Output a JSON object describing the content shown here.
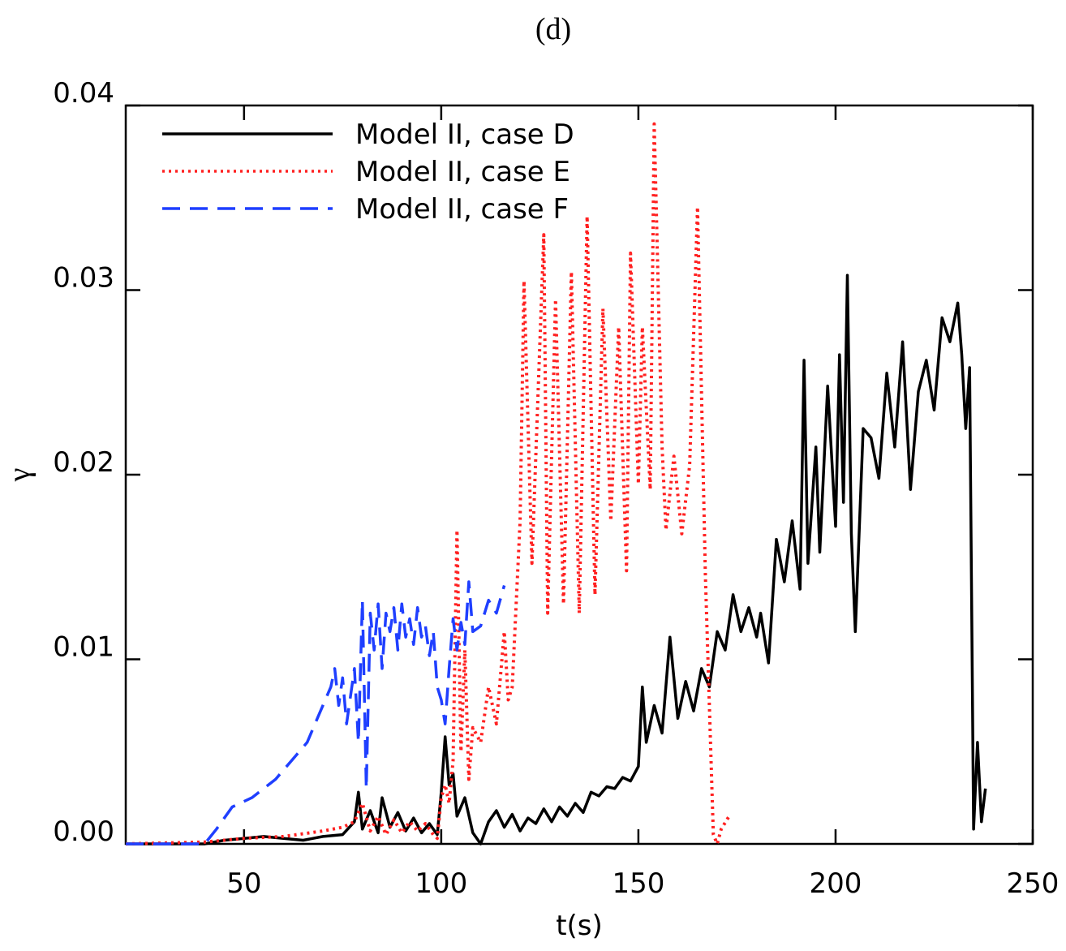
{
  "chart_data": {
    "type": "line",
    "title": "(d)",
    "x_label": "t(s)",
    "y_label": "γ",
    "xlim": [
      20,
      250
    ],
    "ylim": [
      0,
      0.04
    ],
    "xticks": [
      50,
      100,
      150,
      200,
      250
    ],
    "yticks": [
      {
        "value": 0,
        "label": "0.00"
      },
      0.01,
      0.02,
      0.03,
      0.04
    ],
    "legend": "upper left",
    "series": [
      {
        "name": "Model II, case D",
        "color": "#000000",
        "style": "solid",
        "x": [
          20,
          40,
          45,
          50,
          55,
          60,
          65,
          70,
          75,
          78,
          79,
          80,
          82,
          84,
          85,
          87,
          89,
          91,
          93,
          95,
          97,
          99,
          100,
          101,
          102,
          103,
          104,
          106,
          108,
          110,
          112,
          114,
          116,
          118,
          120,
          122,
          124,
          126,
          128,
          130,
          132,
          134,
          136,
          138,
          140,
          142,
          144,
          146,
          148,
          150,
          151,
          152,
          154,
          156,
          158,
          160,
          162,
          164,
          166,
          168,
          170,
          172,
          174,
          176,
          178,
          180,
          181,
          183,
          185,
          187,
          189,
          191,
          192,
          193,
          195,
          196,
          198,
          200,
          201,
          202,
          203,
          204,
          205,
          207,
          209,
          211,
          213,
          215,
          217,
          219,
          221,
          223,
          225,
          227,
          229,
          231,
          232,
          233,
          234,
          235,
          236,
          237,
          238
        ],
        "values": [
          0,
          0,
          0.0002,
          0.0003,
          0.0004,
          0.0003,
          0.0002,
          0.0004,
          0.0005,
          0.0012,
          0.0028,
          0.0008,
          0.0018,
          0.0006,
          0.0025,
          0.0009,
          0.0017,
          0.0007,
          0.0014,
          0.0006,
          0.0011,
          0.0005,
          0.0028,
          0.0058,
          0.0032,
          0.0038,
          0.0015,
          0.0025,
          0.0006,
          0.0,
          0.0012,
          0.0018,
          0.0009,
          0.0016,
          0.0007,
          0.0014,
          0.0011,
          0.0019,
          0.0012,
          0.002,
          0.0015,
          0.0022,
          0.0017,
          0.0028,
          0.0026,
          0.0031,
          0.003,
          0.0036,
          0.0034,
          0.0042,
          0.0085,
          0.0055,
          0.0075,
          0.006,
          0.0112,
          0.0068,
          0.0088,
          0.0072,
          0.0095,
          0.0085,
          0.0115,
          0.0105,
          0.0135,
          0.0115,
          0.0128,
          0.0112,
          0.0125,
          0.0098,
          0.0165,
          0.0142,
          0.0175,
          0.0138,
          0.0262,
          0.0152,
          0.0215,
          0.0158,
          0.0248,
          0.0172,
          0.0265,
          0.0185,
          0.0308,
          0.0168,
          0.0115,
          0.0225,
          0.022,
          0.0198,
          0.0255,
          0.0215,
          0.0272,
          0.0192,
          0.0245,
          0.0262,
          0.0235,
          0.0285,
          0.0272,
          0.0293,
          0.0265,
          0.0225,
          0.0258,
          0.0008,
          0.0055,
          0.0012,
          0.003
        ]
      },
      {
        "name": "Model II, case E",
        "color": "#ff2020",
        "style": "dotted",
        "x": [
          20,
          40,
          50,
          60,
          70,
          75,
          78,
          80,
          82,
          84,
          86,
          88,
          90,
          92,
          94,
          96,
          98,
          99,
          100,
          101,
          102,
          103,
          104,
          105,
          106,
          107,
          108,
          110,
          112,
          114,
          116,
          117,
          118,
          120,
          121,
          123,
          126,
          127,
          129,
          131,
          133,
          135,
          137,
          139,
          141,
          143,
          145,
          147,
          148,
          150,
          151,
          153,
          154,
          156,
          157,
          158,
          159,
          161,
          163,
          165,
          167,
          169,
          170,
          171,
          173
        ],
        "values": [
          0,
          0.0001,
          0.0003,
          0.0004,
          0.0007,
          0.0009,
          0.0012,
          0.0022,
          0.0007,
          0.0015,
          0.0005,
          0.0013,
          0.0006,
          0.0012,
          0.0007,
          0.0011,
          0.0005,
          0.0003,
          0.0025,
          0.0032,
          0.0022,
          0.0045,
          0.017,
          0.005,
          0.0105,
          0.0035,
          0.0063,
          0.0055,
          0.0085,
          0.0065,
          0.0115,
          0.0078,
          0.0085,
          0.0175,
          0.0305,
          0.0152,
          0.033,
          0.0125,
          0.0295,
          0.013,
          0.031,
          0.0125,
          0.034,
          0.0135,
          0.029,
          0.0175,
          0.028,
          0.0148,
          0.032,
          0.0195,
          0.028,
          0.0192,
          0.039,
          0.0215,
          0.017,
          0.019,
          0.021,
          0.0168,
          0.0205,
          0.0345,
          0.0145,
          0.0005,
          0.0,
          0.0008,
          0.0015
        ]
      },
      {
        "name": "Model II, case F",
        "color": "#1f3fff",
        "style": "dashed",
        "x": [
          20,
          40,
          43,
          47,
          52,
          55,
          58,
          60,
          62,
          64,
          66,
          68,
          70,
          72,
          73,
          74,
          75,
          76,
          78,
          79,
          80,
          81,
          82,
          83,
          84,
          85,
          86,
          87,
          88,
          89,
          90,
          91,
          92,
          93,
          94,
          95,
          96,
          97,
          98,
          99,
          100,
          101,
          102,
          103,
          104,
          105,
          106,
          107,
          108,
          110,
          112,
          114,
          116
        ],
        "values": [
          0,
          0,
          0.0008,
          0.002,
          0.0025,
          0.003,
          0.0035,
          0.004,
          0.0045,
          0.005,
          0.0055,
          0.0065,
          0.0075,
          0.0085,
          0.0095,
          0.0075,
          0.009,
          0.0065,
          0.0095,
          0.0055,
          0.0132,
          0.003,
          0.0125,
          0.0105,
          0.013,
          0.0095,
          0.0125,
          0.0115,
          0.0128,
          0.0105,
          0.013,
          0.0112,
          0.0122,
          0.0108,
          0.0128,
          0.0112,
          0.0118,
          0.0102,
          0.0115,
          0.0085,
          0.0078,
          0.0065,
          0.0095,
          0.0122,
          0.0105,
          0.012,
          0.0108,
          0.0142,
          0.0115,
          0.0118,
          0.0132,
          0.0125,
          0.014
        ]
      }
    ]
  }
}
